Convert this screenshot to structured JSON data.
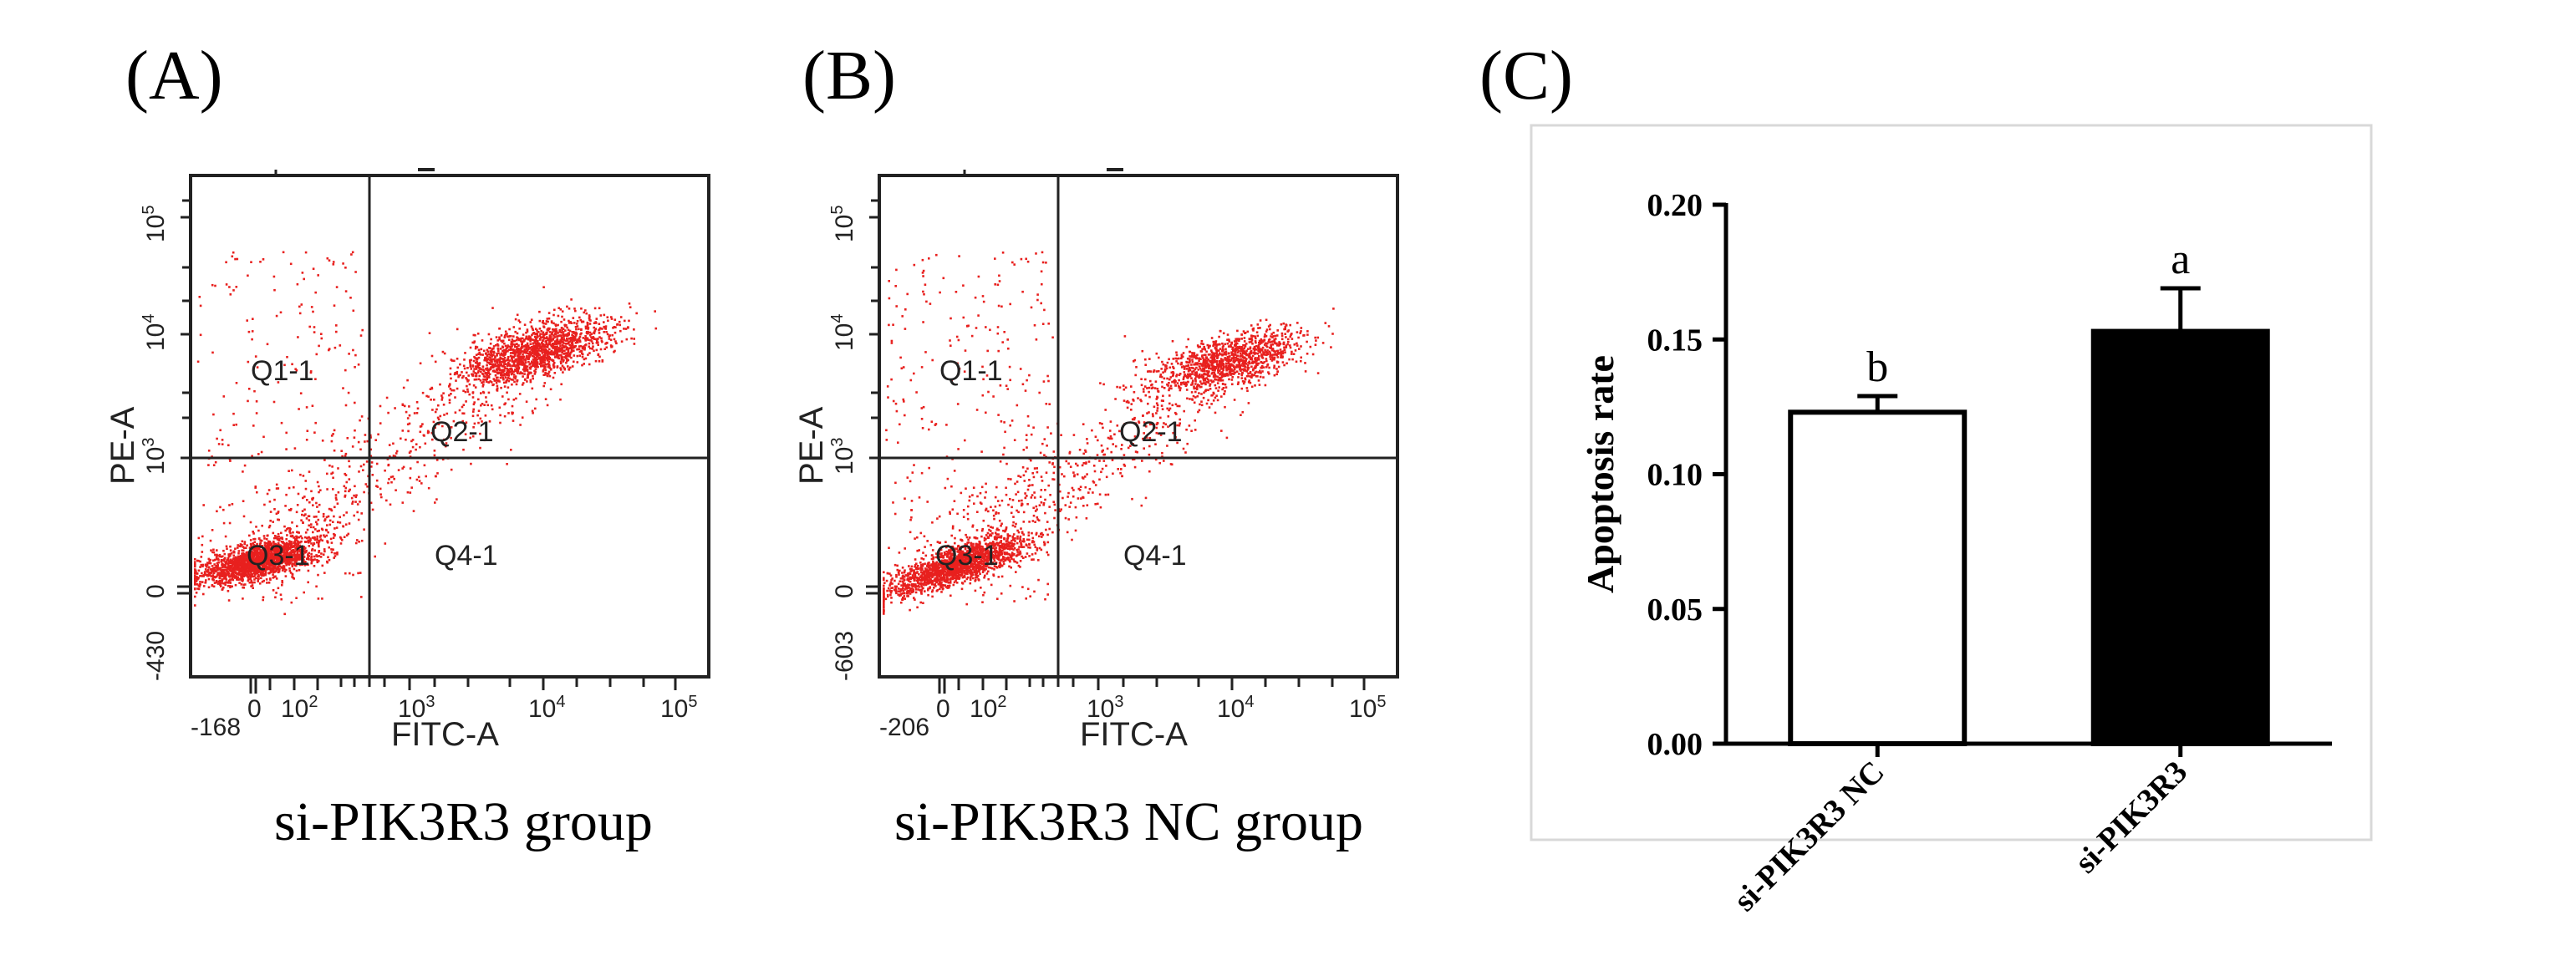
{
  "panels": [
    {
      "label": "(A)",
      "caption": "si-PIK3R3 group",
      "flow": {
        "xlabel": "FITC-A",
        "ylabel": "PE-A",
        "x_ticks": [
          "-168",
          "0",
          "10^2",
          "10^3",
          "10^4",
          "10^5"
        ],
        "y_ticks": [
          "-430",
          "0",
          "10^3",
          "10^4",
          "10^5"
        ],
        "quadrants": [
          "Q1-1",
          "Q2-1",
          "Q3-1",
          "Q4-1"
        ],
        "point_color": "#e8201e",
        "populations": [
          {
            "quadrant": "Q3-1",
            "count": 1900
          },
          {
            "quadrant": "Q2-1",
            "count": 1500
          },
          {
            "quadrant": "Q4-1",
            "count": 500
          },
          {
            "quadrant": "Q1-1",
            "count": 250
          }
        ]
      }
    },
    {
      "label": "(B)",
      "caption": "si-PIK3R3 NC group",
      "flow": {
        "xlabel": "FITC-A",
        "ylabel": "PE-A",
        "x_ticks": [
          "-206",
          "0",
          "10^2",
          "10^3",
          "10^4",
          "10^5"
        ],
        "y_ticks": [
          "-603",
          "0",
          "10^3",
          "10^4",
          "10^5"
        ],
        "quadrants": [
          "Q1-1",
          "Q2-1",
          "Q3-1",
          "Q4-1"
        ],
        "point_color": "#e8201e",
        "populations": [
          {
            "quadrant": "Q3-1",
            "count": 1700
          },
          {
            "quadrant": "Q2-1",
            "count": 1100
          },
          {
            "quadrant": "Q4-1",
            "count": 550
          },
          {
            "quadrant": "Q1-1",
            "count": 300
          }
        ]
      }
    },
    {
      "label": "(C)"
    }
  ],
  "chart_data": {
    "type": "bar",
    "categories": [
      "si-PIK3R3 NC",
      "si-PIK3R3"
    ],
    "values": [
      0.123,
      0.153
    ],
    "errors": [
      0.006,
      0.016
    ],
    "significance": [
      "b",
      "a"
    ],
    "bar_fills": [
      "#ffffff",
      "#000000"
    ],
    "ylabel": "Apoptosis rate",
    "ylim": [
      0,
      0.2
    ],
    "yticks": [
      "0.00",
      "0.05",
      "0.10",
      "0.15",
      "0.20"
    ],
    "ytick_values": [
      0,
      0.05,
      0.1,
      0.15,
      0.2
    ]
  }
}
